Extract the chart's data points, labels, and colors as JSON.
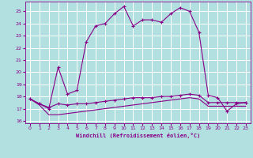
{
  "background_color": "#b2dfdf",
  "grid_color": "#ffffff",
  "line_color": "#880088",
  "xlabel": "Windchill (Refroidissement éolien,°C)",
  "xlim": [
    -0.5,
    23.5
  ],
  "ylim": [
    15.8,
    25.8
  ],
  "yticks": [
    16,
    17,
    18,
    19,
    20,
    21,
    22,
    23,
    24,
    25
  ],
  "xticks": [
    0,
    1,
    2,
    3,
    4,
    5,
    6,
    7,
    8,
    9,
    10,
    11,
    12,
    13,
    14,
    15,
    16,
    17,
    18,
    19,
    20,
    21,
    22,
    23
  ],
  "main_x": [
    0,
    1,
    2,
    3,
    4,
    5,
    6,
    7,
    8,
    9,
    10,
    11,
    12,
    13,
    14,
    15,
    16,
    17,
    18,
    19,
    20,
    21,
    22,
    23
  ],
  "main_y": [
    17.8,
    17.4,
    17.0,
    20.4,
    18.2,
    18.5,
    22.5,
    23.8,
    24.0,
    24.8,
    25.4,
    23.8,
    24.3,
    24.3,
    24.1,
    24.8,
    25.3,
    25.0,
    23.3,
    18.1,
    17.9,
    16.8,
    17.4,
    17.5
  ],
  "mid_x": [
    0,
    1,
    2,
    3,
    4,
    5,
    6,
    7,
    8,
    9,
    10,
    11,
    12,
    13,
    14,
    15,
    16,
    17,
    18,
    19,
    20,
    21,
    22,
    23
  ],
  "mid_y": [
    17.8,
    17.4,
    17.1,
    17.4,
    17.3,
    17.4,
    17.4,
    17.5,
    17.6,
    17.7,
    17.8,
    17.9,
    17.9,
    17.9,
    18.0,
    18.0,
    18.1,
    18.2,
    18.1,
    17.5,
    17.5,
    17.5,
    17.5,
    17.5
  ],
  "bot_x": [
    0,
    1,
    2,
    3,
    4,
    5,
    6,
    7,
    8,
    9,
    10,
    11,
    12,
    13,
    14,
    15,
    16,
    17,
    18,
    19,
    20,
    21,
    22,
    23
  ],
  "bot_y": [
    17.8,
    17.3,
    16.5,
    16.5,
    16.6,
    16.7,
    16.8,
    16.9,
    17.0,
    17.1,
    17.2,
    17.3,
    17.4,
    17.5,
    17.6,
    17.7,
    17.8,
    17.9,
    17.8,
    17.2,
    17.2,
    17.2,
    17.2,
    17.2
  ]
}
